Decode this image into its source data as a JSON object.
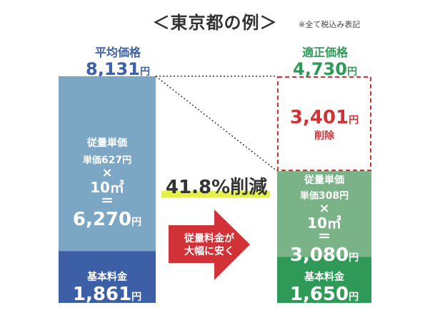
{
  "title": "＜東京都の例＞",
  "note": "※全て税込み表記",
  "chart_data": {
    "type": "bar",
    "title": "＜東京都の例＞",
    "unit": "円",
    "categories": [
      "平均価格",
      "適正価格"
    ],
    "series": [
      {
        "name": "基本料金",
        "values": [
          1861,
          1650
        ]
      },
      {
        "name": "従量単価",
        "values": [
          6270,
          3080
        ]
      }
    ],
    "totals": [
      8131,
      4730
    ],
    "reduction": 3401,
    "ylim": [
      0,
      8131
    ],
    "colors": {
      "avg_top": "#7ba6c4",
      "avg_base": "#3d5fa6",
      "fair_top": "#7bb389",
      "fair_base": "#2f9a57",
      "red": "#d13237"
    }
  },
  "left": {
    "header": "平均価格",
    "total": "8,131",
    "unit": "円",
    "top_label": "従量単価",
    "unit_price_prefix": "単価",
    "unit_price": "627",
    "unit_price_unit": "円",
    "times": "×",
    "volume": "10㎥",
    "equals": "＝",
    "usage_value": "6,270",
    "usage_unit": "円",
    "base_label": "基本料金",
    "base_value": "1,861",
    "base_unit": "円"
  },
  "right": {
    "header": "適正価格",
    "total": "4,730",
    "unit": "円",
    "top_label": "従量単価",
    "unit_price_prefix": "単価",
    "unit_price": "308",
    "unit_price_unit": "円",
    "times": "×",
    "volume": "10㎥",
    "equals": "＝",
    "usage_value": "3,080",
    "usage_unit": "円",
    "base_label": "基本料金",
    "base_value": "1,650",
    "base_unit": "円"
  },
  "reduction": {
    "value": "3,401",
    "unit": "円",
    "label": "削除"
  },
  "percent": "41.8%削減",
  "arrow_text": [
    "従量料金が",
    "大幅に安く"
  ]
}
